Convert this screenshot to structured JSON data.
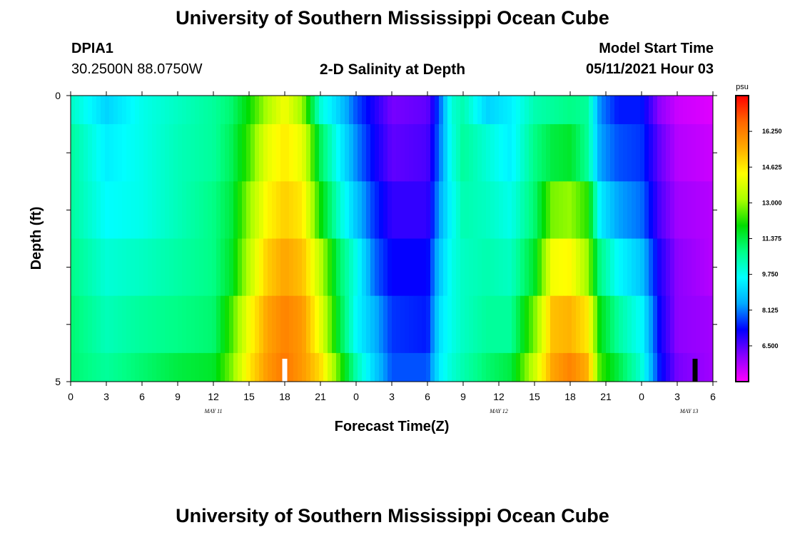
{
  "header": {
    "title": "University of Southern Mississippi Ocean Cube",
    "station": "DPIA1",
    "coords": "30.2500N  88.0750W",
    "subtitle": "2-D Salinity at Depth",
    "model_label": "Model Start Time",
    "model_time": "05/11/2021 Hour 03"
  },
  "footer": {
    "title": "University of Southern Mississippi Ocean Cube"
  },
  "chart_data": {
    "type": "heatmap",
    "title": "2-D Salinity at Depth",
    "xlabel": "Forecast Time(Z)",
    "ylabel": "Depth (ft)",
    "x_tick_labels": [
      "0",
      "3",
      "6",
      "9",
      "12",
      "15",
      "18",
      "21",
      "0",
      "3",
      "6",
      "9",
      "12",
      "15",
      "18",
      "21",
      "0",
      "3",
      "6"
    ],
    "x_hours": [
      0,
      3,
      6,
      9,
      12,
      15,
      18,
      21,
      24,
      27,
      30,
      33,
      36,
      39,
      42,
      45,
      48,
      51,
      54
    ],
    "xlim": [
      0,
      54
    ],
    "date_labels": [
      {
        "hour": 12,
        "label": "MAY 11"
      },
      {
        "hour": 36,
        "label": "MAY 12"
      },
      {
        "hour": 52,
        "label": "MAY 13"
      }
    ],
    "y_tick_labels": [
      "0",
      "5"
    ],
    "ylim": [
      0,
      5
    ],
    "depth_rows": [
      0.5,
      1.5,
      2.5,
      3.5,
      4.5
    ],
    "colorbar": {
      "unit": "psu",
      "tick_labels": [
        "16.250",
        "14.625",
        "13.000",
        "11.375",
        "9.750",
        "8.125",
        "6.500"
      ],
      "range": [
        4.875,
        17.875
      ],
      "colors": [
        "#ff00ff",
        "#8800ff",
        "#0000ff",
        "#00aaff",
        "#00ffff",
        "#00ff88",
        "#00dd00",
        "#aaff00",
        "#ffff00",
        "#ffaa00",
        "#ff6600",
        "#ff0000"
      ]
    },
    "markers": [
      {
        "hour": 18,
        "color": "#ffffff"
      },
      {
        "hour": 52.5,
        "color": "#000000"
      }
    ],
    "bands": [
      {
        "hour": 0,
        "values": [
          10.2,
          10.6,
          10.6,
          10.8,
          11.0,
          11.0
        ]
      },
      {
        "hour": 3,
        "values": [
          9.0,
          9.4,
          9.6,
          10.0,
          10.3,
          10.6
        ]
      },
      {
        "hour": 6,
        "values": [
          9.8,
          9.8,
          9.8,
          10.2,
          10.6,
          11.0
        ]
      },
      {
        "hour": 9,
        "values": [
          10.2,
          10.3,
          10.3,
          10.5,
          10.8,
          11.4
        ]
      },
      {
        "hour": 12,
        "values": [
          10.6,
          10.6,
          10.8,
          10.8,
          11.0,
          11.6
        ]
      },
      {
        "hour": 13.5,
        "values": [
          11.0,
          11.2,
          11.4,
          11.6,
          12.4,
          12.8
        ]
      },
      {
        "hour": 15,
        "values": [
          12.0,
          12.4,
          13.0,
          13.4,
          14.2,
          14.6
        ]
      },
      {
        "hour": 16.5,
        "values": [
          13.2,
          14.0,
          14.4,
          15.0,
          15.6,
          15.8
        ]
      },
      {
        "hour": 18,
        "values": [
          14.2,
          14.6,
          15.0,
          15.6,
          16.2,
          16.4
        ]
      },
      {
        "hour": 19.5,
        "values": [
          13.0,
          14.0,
          14.6,
          15.2,
          15.8,
          15.8
        ]
      },
      {
        "hour": 21,
        "values": [
          10.0,
          11.2,
          12.0,
          13.4,
          14.0,
          14.8
        ]
      },
      {
        "hour": 22.5,
        "values": [
          9.0,
          9.6,
          10.2,
          11.2,
          11.6,
          12.6
        ]
      },
      {
        "hour": 24,
        "values": [
          7.8,
          8.2,
          8.8,
          9.8,
          9.6,
          10.4
        ]
      },
      {
        "hour": 25.5,
        "values": [
          7.0,
          7.2,
          7.6,
          8.0,
          8.6,
          9.0
        ]
      },
      {
        "hour": 27,
        "values": [
          6.2,
          6.4,
          6.8,
          7.2,
          7.6,
          7.8
        ]
      },
      {
        "hour": 30,
        "values": [
          6.4,
          6.6,
          6.8,
          7.2,
          7.4,
          7.8
        ]
      },
      {
        "hour": 31,
        "values": [
          7.8,
          8.0,
          8.4,
          8.8,
          9.2,
          9.4
        ]
      },
      {
        "hour": 32,
        "values": [
          10.0,
          9.8,
          9.6,
          9.8,
          9.8,
          10.0
        ]
      },
      {
        "hour": 33,
        "values": [
          10.4,
          10.6,
          10.4,
          10.2,
          10.2,
          10.4
        ]
      },
      {
        "hour": 35,
        "values": [
          9.0,
          10.0,
          10.2,
          10.4,
          10.6,
          11.0
        ]
      },
      {
        "hour": 37,
        "values": [
          9.4,
          9.4,
          9.8,
          10.2,
          10.6,
          11.4
        ]
      },
      {
        "hour": 39,
        "values": [
          10.4,
          10.8,
          11.0,
          11.6,
          12.8,
          13.6
        ]
      },
      {
        "hour": 40.5,
        "values": [
          10.6,
          11.4,
          12.8,
          14.2,
          15.2,
          15.6
        ]
      },
      {
        "hour": 42,
        "values": [
          10.8,
          11.6,
          13.0,
          14.4,
          15.4,
          16.2
        ]
      },
      {
        "hour": 43.5,
        "values": [
          10.6,
          10.6,
          12.2,
          13.0,
          14.6,
          15.4
        ]
      },
      {
        "hour": 44.5,
        "values": [
          8.2,
          8.4,
          9.4,
          10.8,
          11.8,
          12.4
        ]
      },
      {
        "hour": 46,
        "values": [
          7.4,
          7.8,
          8.4,
          9.6,
          10.6,
          11.4
        ]
      },
      {
        "hour": 48,
        "values": [
          7.4,
          7.6,
          8.0,
          8.8,
          9.6,
          10.0
        ]
      },
      {
        "hour": 49.5,
        "values": [
          6.0,
          6.4,
          6.6,
          7.0,
          7.2,
          7.4
        ]
      },
      {
        "hour": 51,
        "values": [
          5.4,
          5.6,
          5.8,
          6.0,
          6.0,
          6.2
        ]
      },
      {
        "hour": 54,
        "values": [
          5.2,
          5.4,
          5.6,
          5.6,
          5.8,
          5.8
        ]
      }
    ]
  }
}
